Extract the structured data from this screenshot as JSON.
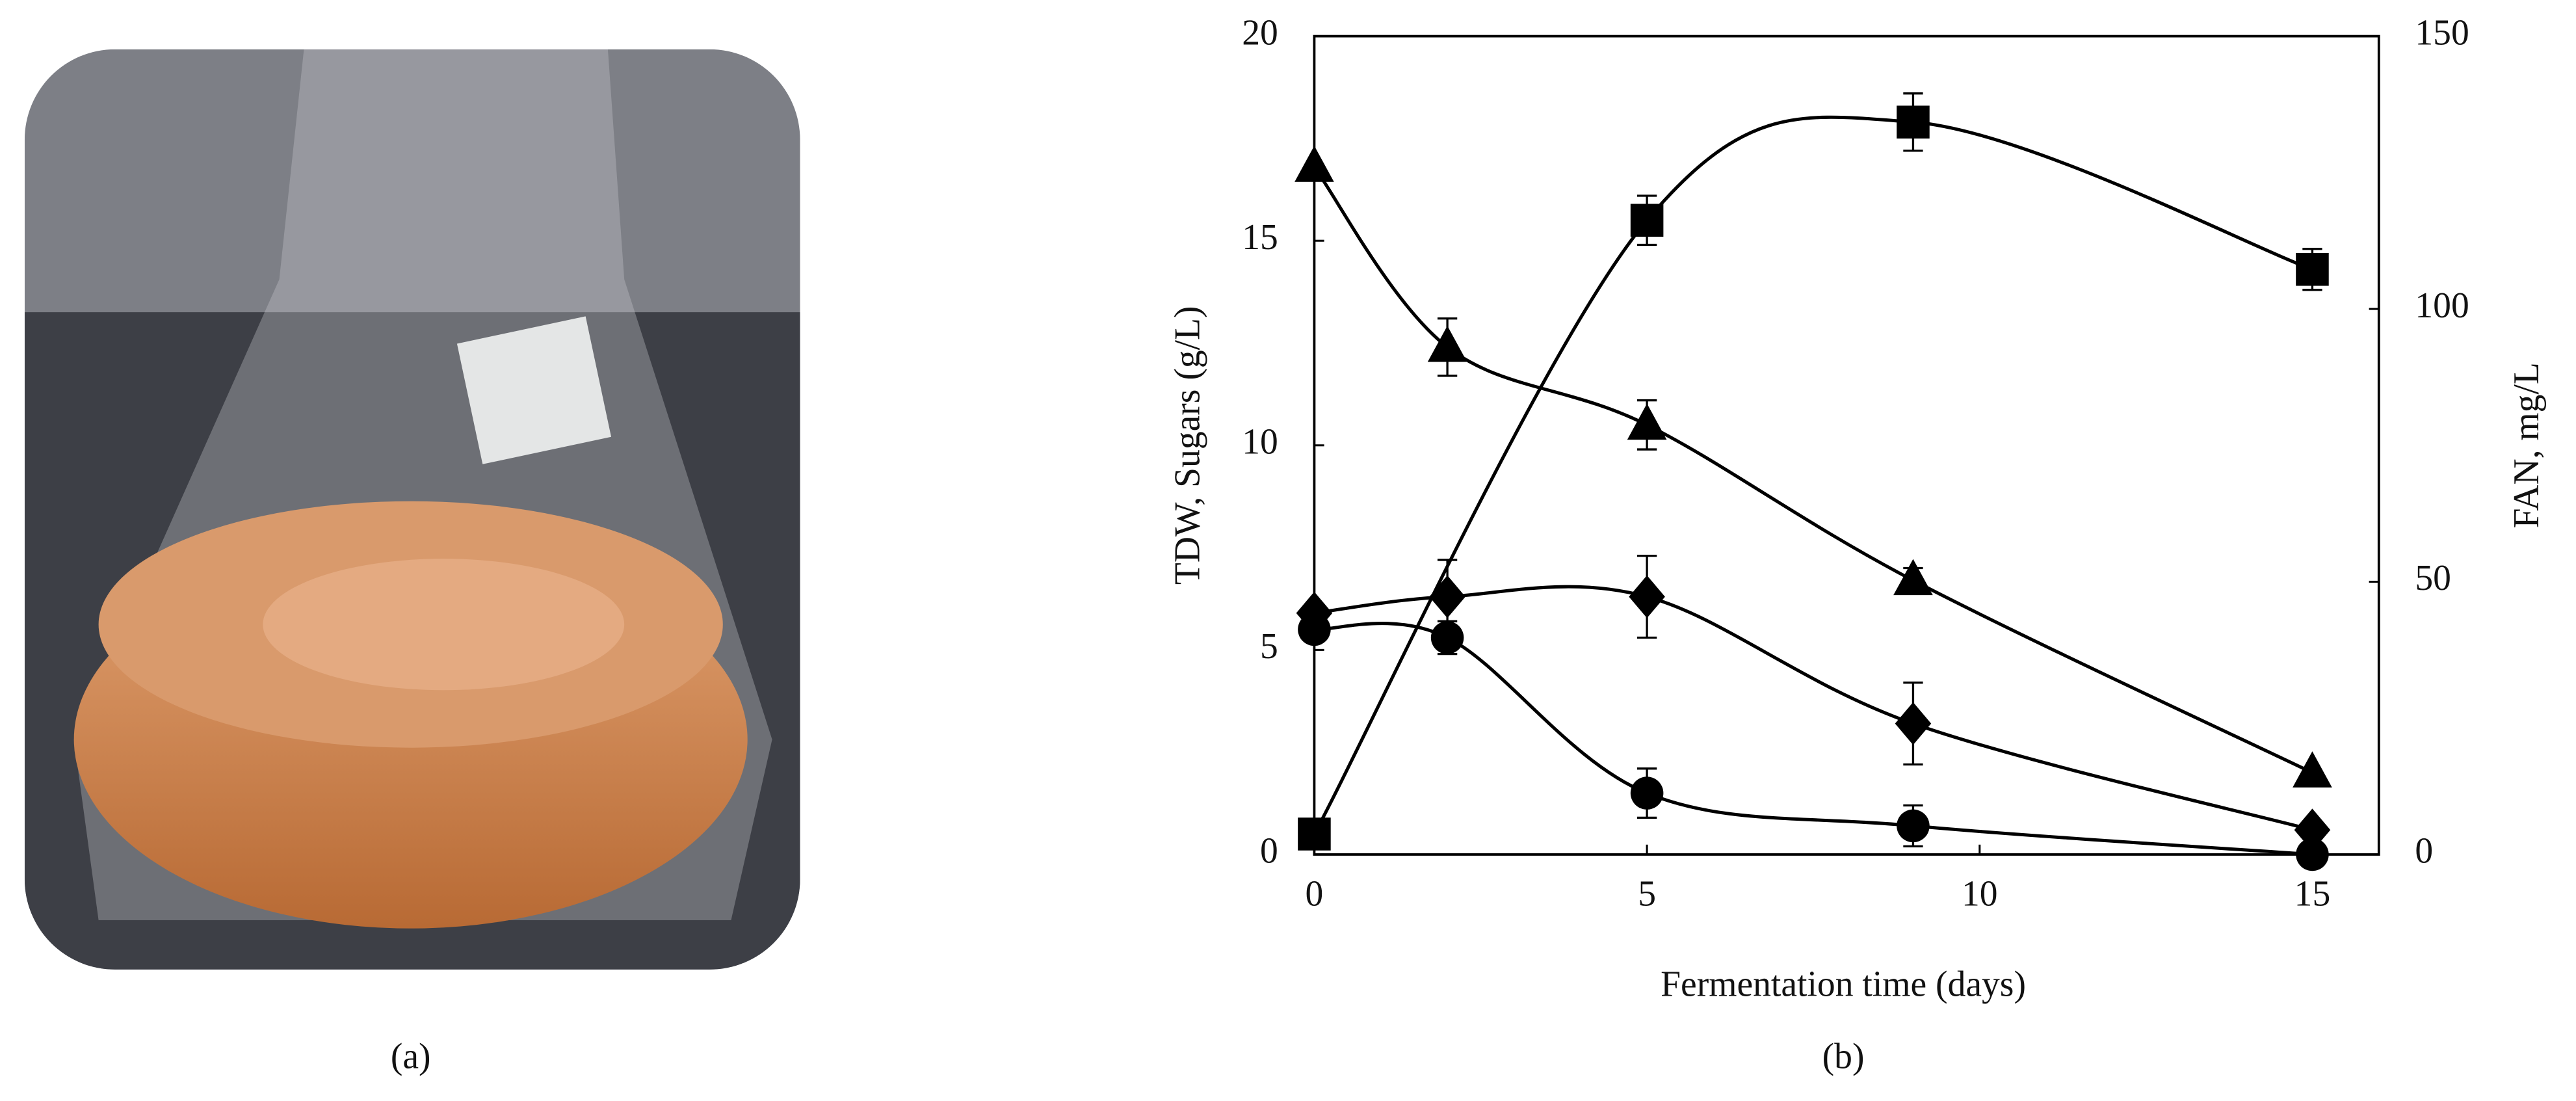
{
  "panel_a": {
    "label": "(a)"
  },
  "chart_data": {
    "type": "line",
    "label": "(b)",
    "x_label": "Fermentation time (days)",
    "y_label": "TDW, Sugars (g/L)",
    "y2_label": "FAN, mg/L",
    "xlim": [
      0,
      16
    ],
    "xticks": [
      0,
      5,
      10,
      15
    ],
    "ylim": [
      0,
      20
    ],
    "yticks": [
      0,
      5,
      10,
      15,
      20
    ],
    "y2lim": [
      0,
      150
    ],
    "y2ticks": [
      0,
      50,
      100,
      150
    ],
    "series": [
      {
        "marker": "square",
        "color": "#000000",
        "x": [
          0,
          5,
          9,
          15
        ],
        "values": [
          0.5,
          15.5,
          17.9,
          14.3
        ],
        "errors": [
          null,
          0.6,
          0.7,
          0.5
        ]
      },
      {
        "marker": "triangle",
        "color": "#000000",
        "x": [
          0,
          2,
          5,
          9,
          15
        ],
        "values": [
          16.8,
          12.4,
          10.5,
          6.7,
          2.0
        ],
        "errors": [
          null,
          0.7,
          0.6,
          0.3,
          null
        ]
      },
      {
        "marker": "diamond",
        "color": "#000000",
        "x": [
          0,
          2,
          5,
          9,
          15
        ],
        "values": [
          5.9,
          6.3,
          6.3,
          3.2,
          0.6
        ],
        "errors": [
          null,
          0.9,
          1.0,
          1.0,
          null
        ]
      },
      {
        "marker": "circle",
        "color": "#000000",
        "x": [
          0,
          2,
          5,
          9,
          15
        ],
        "values": [
          5.5,
          5.3,
          1.5,
          0.7,
          0.0
        ],
        "errors": [
          null,
          0.4,
          0.6,
          0.5,
          null
        ]
      }
    ]
  }
}
